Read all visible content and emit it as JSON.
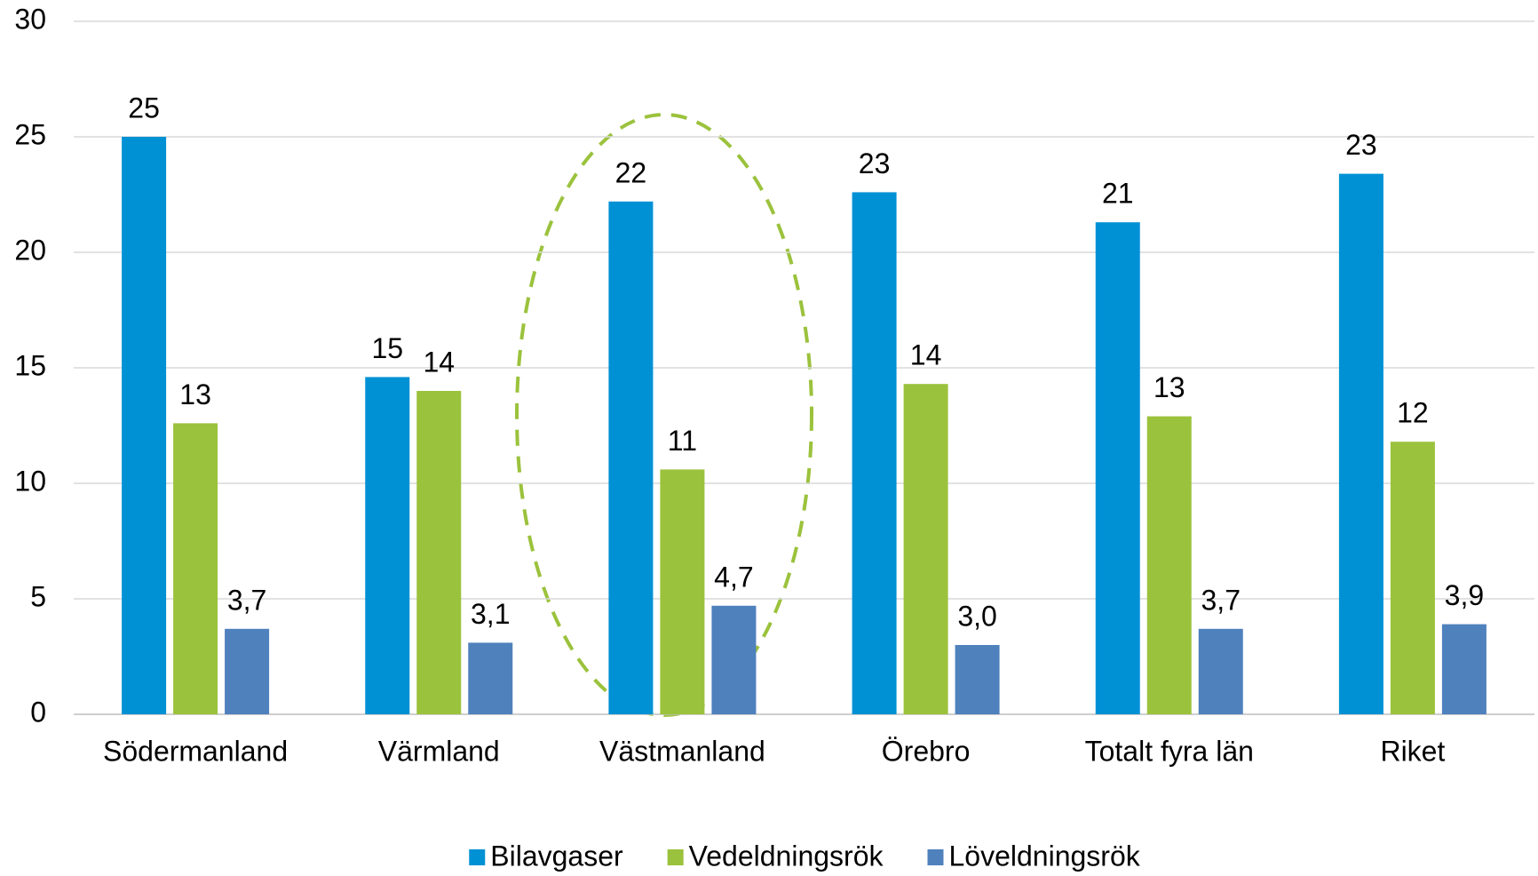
{
  "chart_data": {
    "type": "bar",
    "categories": [
      "Södermanland",
      "Värmland",
      "Västmanland",
      "Örebro",
      "Totalt fyra län",
      "Riket"
    ],
    "series": [
      {
        "name": "Bilavgaser",
        "color": "#0091d5",
        "values": [
          25,
          14.6,
          22.2,
          22.6,
          21.3,
          23.4
        ],
        "value_labels": [
          "25",
          "15",
          "22",
          "23",
          "21",
          "23"
        ]
      },
      {
        "name": "Vedeldningsrök",
        "color": "#9bc23c",
        "values": [
          12.6,
          14.0,
          10.6,
          14.3,
          12.9,
          11.8
        ],
        "value_labels": [
          "13",
          "14",
          "11",
          "14",
          "13",
          "12"
        ]
      },
      {
        "name": "Löveldningsrök",
        "color": "#4f81bd",
        "values": [
          3.7,
          3.1,
          4.7,
          3.0,
          3.7,
          3.9
        ],
        "value_labels": [
          "3,7",
          "3,1",
          "4,7",
          "3,0",
          "3,7",
          "3,9"
        ]
      }
    ],
    "ylim": [
      0,
      30
    ],
    "yticks": [
      0,
      5,
      10,
      15,
      20,
      25,
      30
    ],
    "grid": true,
    "legend": "bottom"
  }
}
